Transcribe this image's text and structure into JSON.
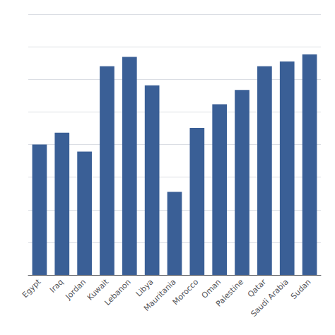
{
  "chart_data": {
    "type": "bar",
    "categories": [
      "Egypt",
      "Iraq",
      "Jordan",
      "Kuwait",
      "Lebanon",
      "Libya",
      "Mauritania",
      "Morocco",
      "Oman",
      "Palestine",
      "Qatar",
      "Saudi Arabia",
      "Sudan"
    ],
    "values": [
      5.5,
      6.0,
      5.2,
      8.8,
      9.2,
      8.0,
      3.5,
      6.2,
      7.2,
      7.8,
      8.8,
      9.0,
      9.3
    ],
    "color": "#3a5f96",
    "ylim": [
      0,
      11
    ],
    "yticks": [
      0,
      1.375,
      2.75,
      4.125,
      5.5,
      6.875,
      8.25,
      9.625,
      11
    ],
    "grid": true,
    "tick_labels": "x"
  }
}
